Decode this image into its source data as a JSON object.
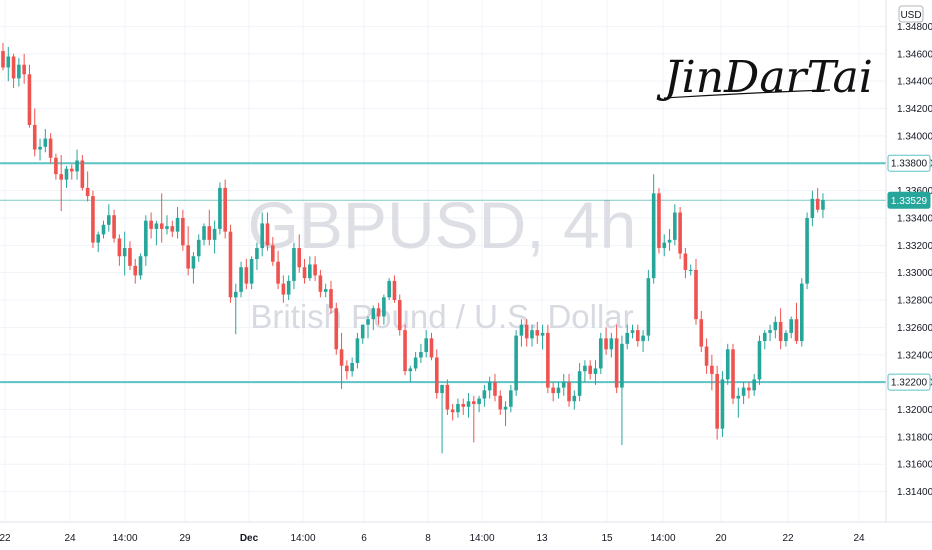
{
  "currency_label": "USD",
  "signature": "JinDarTai",
  "colors": {
    "up": "#26a69a",
    "down": "#ef5350",
    "level_line": "#5cc2c6",
    "price_line": "#26a69a",
    "grid": "#f0f3fa",
    "axis_text": "#131722",
    "watermark": "#d1d4dc"
  },
  "chart_data": {
    "type": "candlestick",
    "title": "GBPUSD, 4h",
    "subtitle": "British Pound / U.S. Dollar",
    "symbol": "GBPUSD",
    "interval": "4h",
    "ylim": [
      1.3128,
      1.3492
    ],
    "y_ticks": [
      "1.34800",
      "1.34600",
      "1.34400",
      "1.34200",
      "1.34000",
      "1.33800",
      "1.33600",
      "1.33400",
      "1.33200",
      "1.33000",
      "1.32800",
      "1.32600",
      "1.32400",
      "1.32200",
      "1.32000",
      "1.31800",
      "1.31600",
      "1.31400"
    ],
    "x_ticks": [
      "22",
      "24",
      "14:00",
      "29",
      "Dec",
      "14:00",
      "6",
      "8",
      "14:00",
      "13",
      "15",
      "14:00",
      "20",
      "22",
      "24"
    ],
    "horizontal_levels": [
      {
        "value": 1.338,
        "label": "1.33800"
      },
      {
        "value": 1.322,
        "label": "1.32200"
      }
    ],
    "last_price": {
      "value": 1.33529,
      "label": "1.33529"
    },
    "candles": [
      [
        1.3462,
        1.3468,
        1.3448,
        1.345
      ],
      [
        1.345,
        1.3465,
        1.344,
        1.3458
      ],
      [
        1.3458,
        1.346,
        1.3435,
        1.3442
      ],
      [
        1.3442,
        1.3457,
        1.3436,
        1.3452
      ],
      [
        1.3452,
        1.346,
        1.3438,
        1.3445
      ],
      [
        1.3445,
        1.3452,
        1.3406,
        1.3408
      ],
      [
        1.3408,
        1.342,
        1.3385,
        1.339
      ],
      [
        1.339,
        1.3398,
        1.3382,
        1.3392
      ],
      [
        1.3392,
        1.3405,
        1.3388,
        1.3398
      ],
      [
        1.3398,
        1.3402,
        1.338,
        1.3384
      ],
      [
        1.3384,
        1.3387,
        1.3368,
        1.3372
      ],
      [
        1.3372,
        1.3386,
        1.3345,
        1.3368
      ],
      [
        1.3368,
        1.3378,
        1.3362,
        1.3376
      ],
      [
        1.3376,
        1.3379,
        1.3368,
        1.3374
      ],
      [
        1.3374,
        1.339,
        1.3368,
        1.3382
      ],
      [
        1.3382,
        1.3386,
        1.336,
        1.3362
      ],
      [
        1.3362,
        1.3374,
        1.3352,
        1.3356
      ],
      [
        1.3356,
        1.336,
        1.3318,
        1.3322
      ],
      [
        1.3322,
        1.333,
        1.3315,
        1.3328
      ],
      [
        1.3328,
        1.3338,
        1.3325,
        1.3335
      ],
      [
        1.3335,
        1.335,
        1.333,
        1.3342
      ],
      [
        1.3342,
        1.3346,
        1.3322,
        1.3325
      ],
      [
        1.3325,
        1.3328,
        1.3305,
        1.3312
      ],
      [
        1.3312,
        1.333,
        1.3298,
        1.3318
      ],
      [
        1.3318,
        1.3323,
        1.3302,
        1.3305
      ],
      [
        1.3305,
        1.331,
        1.3292,
        1.3298
      ],
      [
        1.3298,
        1.3314,
        1.3295,
        1.3312
      ],
      [
        1.3312,
        1.3342,
        1.3305,
        1.3338
      ],
      [
        1.3338,
        1.3344,
        1.3325,
        1.3332
      ],
      [
        1.3332,
        1.3338,
        1.332,
        1.3336
      ],
      [
        1.3336,
        1.3358,
        1.3322,
        1.3332
      ],
      [
        1.3332,
        1.3342,
        1.3328,
        1.3334
      ],
      [
        1.3334,
        1.3338,
        1.3326,
        1.333
      ],
      [
        1.333,
        1.3348,
        1.3325,
        1.334
      ],
      [
        1.334,
        1.3346,
        1.3316,
        1.332
      ],
      [
        1.332,
        1.3334,
        1.3298,
        1.3303
      ],
      [
        1.3303,
        1.3315,
        1.3292,
        1.3312
      ],
      [
        1.3312,
        1.3328,
        1.3308,
        1.3324
      ],
      [
        1.3324,
        1.3336,
        1.332,
        1.3334
      ],
      [
        1.3334,
        1.3346,
        1.332,
        1.3324
      ],
      [
        1.3324,
        1.3338,
        1.3314,
        1.3332
      ],
      [
        1.3332,
        1.3366,
        1.3328,
        1.3362
      ],
      [
        1.3362,
        1.3368,
        1.3325,
        1.333
      ],
      [
        1.333,
        1.3335,
        1.3278,
        1.3282
      ],
      [
        1.3282,
        1.3292,
        1.3255,
        1.3286
      ],
      [
        1.3286,
        1.3308,
        1.3282,
        1.3304
      ],
      [
        1.3304,
        1.331,
        1.3288,
        1.3292
      ],
      [
        1.3292,
        1.3312,
        1.3288,
        1.331
      ],
      [
        1.331,
        1.3322,
        1.3302,
        1.3318
      ],
      [
        1.3318,
        1.3344,
        1.3312,
        1.3336
      ],
      [
        1.3336,
        1.3344,
        1.3316,
        1.332
      ],
      [
        1.332,
        1.3326,
        1.3305,
        1.3308
      ],
      [
        1.3308,
        1.3316,
        1.3288,
        1.3292
      ],
      [
        1.3292,
        1.3298,
        1.3278,
        1.3284
      ],
      [
        1.3284,
        1.3298,
        1.328,
        1.3294
      ],
      [
        1.3294,
        1.3322,
        1.3288,
        1.3318
      ],
      [
        1.3318,
        1.3328,
        1.33,
        1.3304
      ],
      [
        1.3304,
        1.331,
        1.3292,
        1.3296
      ],
      [
        1.3296,
        1.3312,
        1.3294,
        1.3306
      ],
      [
        1.3306,
        1.3312,
        1.3294,
        1.3298
      ],
      [
        1.3298,
        1.3302,
        1.3282,
        1.3286
      ],
      [
        1.3286,
        1.3292,
        1.3282,
        1.3288
      ],
      [
        1.3288,
        1.3294,
        1.327,
        1.3274
      ],
      [
        1.3274,
        1.3278,
        1.324,
        1.3244
      ],
      [
        1.3244,
        1.3256,
        1.3215,
        1.3232
      ],
      [
        1.3232,
        1.3236,
        1.3222,
        1.3228
      ],
      [
        1.3228,
        1.3238,
        1.3224,
        1.3234
      ],
      [
        1.3234,
        1.3256,
        1.323,
        1.3252
      ],
      [
        1.3252,
        1.3262,
        1.3248,
        1.3262
      ],
      [
        1.3262,
        1.3268,
        1.3252,
        1.3266
      ],
      [
        1.3266,
        1.3276,
        1.3258,
        1.3274
      ],
      [
        1.3274,
        1.3278,
        1.3262,
        1.3268
      ],
      [
        1.3268,
        1.3284,
        1.3262,
        1.3282
      ],
      [
        1.3282,
        1.3296,
        1.328,
        1.3294
      ],
      [
        1.3294,
        1.3298,
        1.3278,
        1.328
      ],
      [
        1.328,
        1.3284,
        1.3254,
        1.3258
      ],
      [
        1.3258,
        1.3262,
        1.3225,
        1.3228
      ],
      [
        1.3228,
        1.3232,
        1.322,
        1.323
      ],
      [
        1.323,
        1.3242,
        1.3228,
        1.3238
      ],
      [
        1.3238,
        1.3248,
        1.3234,
        1.3242
      ],
      [
        1.3242,
        1.3258,
        1.3238,
        1.3252
      ],
      [
        1.3252,
        1.3256,
        1.3236,
        1.3238
      ],
      [
        1.3238,
        1.3244,
        1.3208,
        1.3212
      ],
      [
        1.3212,
        1.3218,
        1.3168,
        1.3218
      ],
      [
        1.3218,
        1.3222,
        1.3196,
        1.32
      ],
      [
        1.32,
        1.3204,
        1.3192,
        1.3198
      ],
      [
        1.3198,
        1.3208,
        1.3194,
        1.3204
      ],
      [
        1.3204,
        1.3208,
        1.3196,
        1.3202
      ],
      [
        1.3202,
        1.3212,
        1.3194,
        1.3206
      ],
      [
        1.3206,
        1.321,
        1.3176,
        1.3204
      ],
      [
        1.3204,
        1.321,
        1.3198,
        1.3208
      ],
      [
        1.3208,
        1.3218,
        1.3202,
        1.3214
      ],
      [
        1.3214,
        1.3224,
        1.3208,
        1.322
      ],
      [
        1.322,
        1.3226,
        1.3206,
        1.321
      ],
      [
        1.321,
        1.3214,
        1.3196,
        1.32
      ],
      [
        1.32,
        1.3206,
        1.3188,
        1.3202
      ],
      [
        1.3202,
        1.3218,
        1.3198,
        1.3214
      ],
      [
        1.3214,
        1.3258,
        1.321,
        1.3254
      ],
      [
        1.3254,
        1.3266,
        1.3246,
        1.3262
      ],
      [
        1.3262,
        1.3266,
        1.3246,
        1.3252
      ],
      [
        1.3252,
        1.3262,
        1.3246,
        1.3258
      ],
      [
        1.3258,
        1.3264,
        1.3248,
        1.3254
      ],
      [
        1.3254,
        1.3262,
        1.3244,
        1.3256
      ],
      [
        1.3256,
        1.3262,
        1.3212,
        1.3216
      ],
      [
        1.3216,
        1.322,
        1.3206,
        1.3212
      ],
      [
        1.3212,
        1.322,
        1.3208,
        1.3216
      ],
      [
        1.3216,
        1.3226,
        1.321,
        1.322
      ],
      [
        1.322,
        1.3226,
        1.3202,
        1.3206
      ],
      [
        1.3206,
        1.3214,
        1.32,
        1.321
      ],
      [
        1.321,
        1.3234,
        1.3206,
        1.3228
      ],
      [
        1.3228,
        1.3236,
        1.322,
        1.3232
      ],
      [
        1.3232,
        1.3236,
        1.3222,
        1.3226
      ],
      [
        1.3226,
        1.3236,
        1.3218,
        1.323
      ],
      [
        1.323,
        1.3256,
        1.3226,
        1.3252
      ],
      [
        1.3252,
        1.326,
        1.324,
        1.3244
      ],
      [
        1.3244,
        1.3256,
        1.3238,
        1.3252
      ],
      [
        1.3252,
        1.3262,
        1.3212,
        1.3216
      ],
      [
        1.3216,
        1.3254,
        1.3174,
        1.3248
      ],
      [
        1.3248,
        1.3262,
        1.3244,
        1.3256
      ],
      [
        1.3256,
        1.3262,
        1.3252,
        1.3258
      ],
      [
        1.3258,
        1.3262,
        1.3246,
        1.325
      ],
      [
        1.325,
        1.3258,
        1.3242,
        1.3254
      ],
      [
        1.3254,
        1.3302,
        1.325,
        1.3296
      ],
      [
        1.3296,
        1.3372,
        1.3292,
        1.3358
      ],
      [
        1.3358,
        1.3362,
        1.3314,
        1.3318
      ],
      [
        1.3318,
        1.3328,
        1.3312,
        1.3322
      ],
      [
        1.3322,
        1.3332,
        1.3316,
        1.3324
      ],
      [
        1.3324,
        1.335,
        1.332,
        1.3344
      ],
      [
        1.3344,
        1.3348,
        1.331,
        1.3314
      ],
      [
        1.3314,
        1.3318,
        1.3296,
        1.3302
      ],
      [
        1.3302,
        1.3306,
        1.3298,
        1.3302
      ],
      [
        1.3302,
        1.331,
        1.3262,
        1.3266
      ],
      [
        1.3266,
        1.3272,
        1.3242,
        1.3246
      ],
      [
        1.3246,
        1.3252,
        1.3226,
        1.3232
      ],
      [
        1.3232,
        1.324,
        1.3214,
        1.3226
      ],
      [
        1.3226,
        1.3232,
        1.3178,
        1.3186
      ],
      [
        1.3186,
        1.3228,
        1.318,
        1.3222
      ],
      [
        1.3222,
        1.3248,
        1.3218,
        1.3244
      ],
      [
        1.3244,
        1.3248,
        1.3204,
        1.3208
      ],
      [
        1.3208,
        1.3216,
        1.3194,
        1.321
      ],
      [
        1.321,
        1.322,
        1.3204,
        1.3216
      ],
      [
        1.3216,
        1.322,
        1.3208,
        1.3214
      ],
      [
        1.3214,
        1.3226,
        1.321,
        1.3222
      ],
      [
        1.3222,
        1.3254,
        1.3218,
        1.325
      ],
      [
        1.325,
        1.3258,
        1.3244,
        1.3256
      ],
      [
        1.3256,
        1.3262,
        1.325,
        1.3258
      ],
      [
        1.3258,
        1.3268,
        1.3252,
        1.3264
      ],
      [
        1.3264,
        1.3274,
        1.3244,
        1.325
      ],
      [
        1.325,
        1.3258,
        1.3246,
        1.3256
      ],
      [
        1.3256,
        1.3268,
        1.3252,
        1.3266
      ],
      [
        1.3266,
        1.3278,
        1.3248,
        1.325
      ],
      [
        1.325,
        1.3296,
        1.3246,
        1.3292
      ],
      [
        1.3292,
        1.3344,
        1.3288,
        1.334
      ],
      [
        1.334,
        1.336,
        1.3334,
        1.3354
      ],
      [
        1.3354,
        1.3362,
        1.3344,
        1.3346
      ],
      [
        1.3346,
        1.3358,
        1.334,
        1.3353
      ]
    ]
  }
}
